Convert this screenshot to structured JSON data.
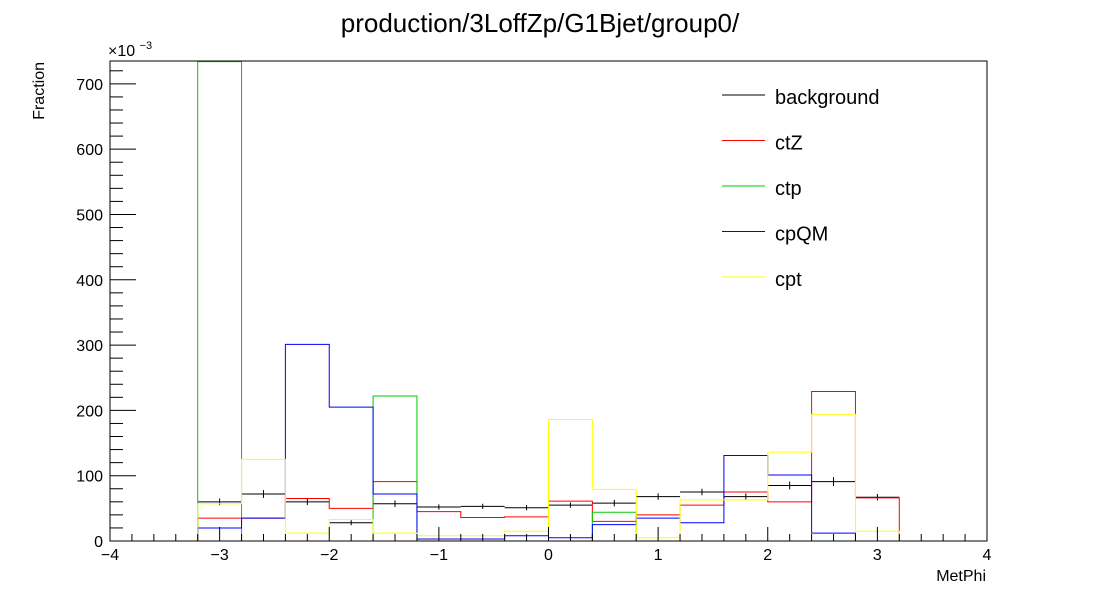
{
  "chart_data": {
    "type": "histogram",
    "title": "production/3LoffZp/G1Bjet/group0/",
    "xlabel": "MetPhi",
    "ylabel": "Fraction",
    "y_exponent_label": "×10",
    "y_exponent_power": "−3",
    "xlim": [
      -4,
      4
    ],
    "ylim": [
      0,
      735
    ],
    "x_ticks": [
      -4,
      -3,
      -2,
      -1,
      0,
      1,
      2,
      3,
      4
    ],
    "x_tick_labels": [
      "−4",
      "−3",
      "−2",
      "−1",
      "0",
      "1",
      "2",
      "3",
      "4"
    ],
    "y_ticks": [
      0,
      100,
      200,
      300,
      400,
      500,
      600,
      700
    ],
    "y_tick_labels": [
      "0",
      "100",
      "200",
      "300",
      "400",
      "500",
      "600",
      "700"
    ],
    "bin_edges": [
      -4.0,
      -3.6,
      -3.2,
      -2.8,
      -2.4,
      -2.0,
      -1.6,
      -1.2,
      -0.8,
      -0.4,
      0.0,
      0.4,
      0.8,
      1.2,
      1.6,
      2.0,
      2.4,
      2.8,
      3.2,
      3.6,
      4.0
    ],
    "series": [
      {
        "name": "background",
        "color": "#000000",
        "errors": true,
        "values": [
          0,
          0,
          60,
          72,
          60,
          28,
          57,
          52,
          53,
          51,
          55,
          58,
          68,
          75,
          68,
          85,
          91,
          67,
          0,
          0
        ],
        "err": [
          0,
          0,
          5,
          6,
          5,
          4,
          5,
          4,
          4,
          4,
          4,
          5,
          5,
          5,
          5,
          6,
          7,
          5,
          0,
          0
        ]
      },
      {
        "name": "ctZ",
        "color": "#ff0000",
        "values": [
          0,
          0,
          35,
          35,
          65,
          50,
          91,
          45,
          36,
          37,
          61,
          30,
          40,
          55,
          75,
          60,
          229,
          66,
          0,
          0
        ]
      },
      {
        "name": "ctp",
        "color": "#00cc00",
        "values": [
          0,
          0,
          734,
          0,
          0,
          0,
          222,
          0,
          0,
          0,
          0,
          44,
          0,
          0,
          0,
          0,
          0,
          0,
          0,
          0
        ]
      },
      {
        "name": "cpQM",
        "color": "#0000ff",
        "values": [
          0,
          0,
          20,
          35,
          301,
          205,
          72,
          3,
          3,
          8,
          5,
          25,
          35,
          28,
          131,
          101,
          12,
          0,
          0,
          0
        ]
      },
      {
        "name": "cpt",
        "color": "#ffff00",
        "values": [
          0,
          0,
          57,
          125,
          12,
          33,
          12,
          8,
          8,
          15,
          186,
          79,
          5,
          63,
          63,
          136,
          194,
          15,
          0,
          0
        ]
      }
    ],
    "legend_position": "top-right",
    "grid": false
  }
}
